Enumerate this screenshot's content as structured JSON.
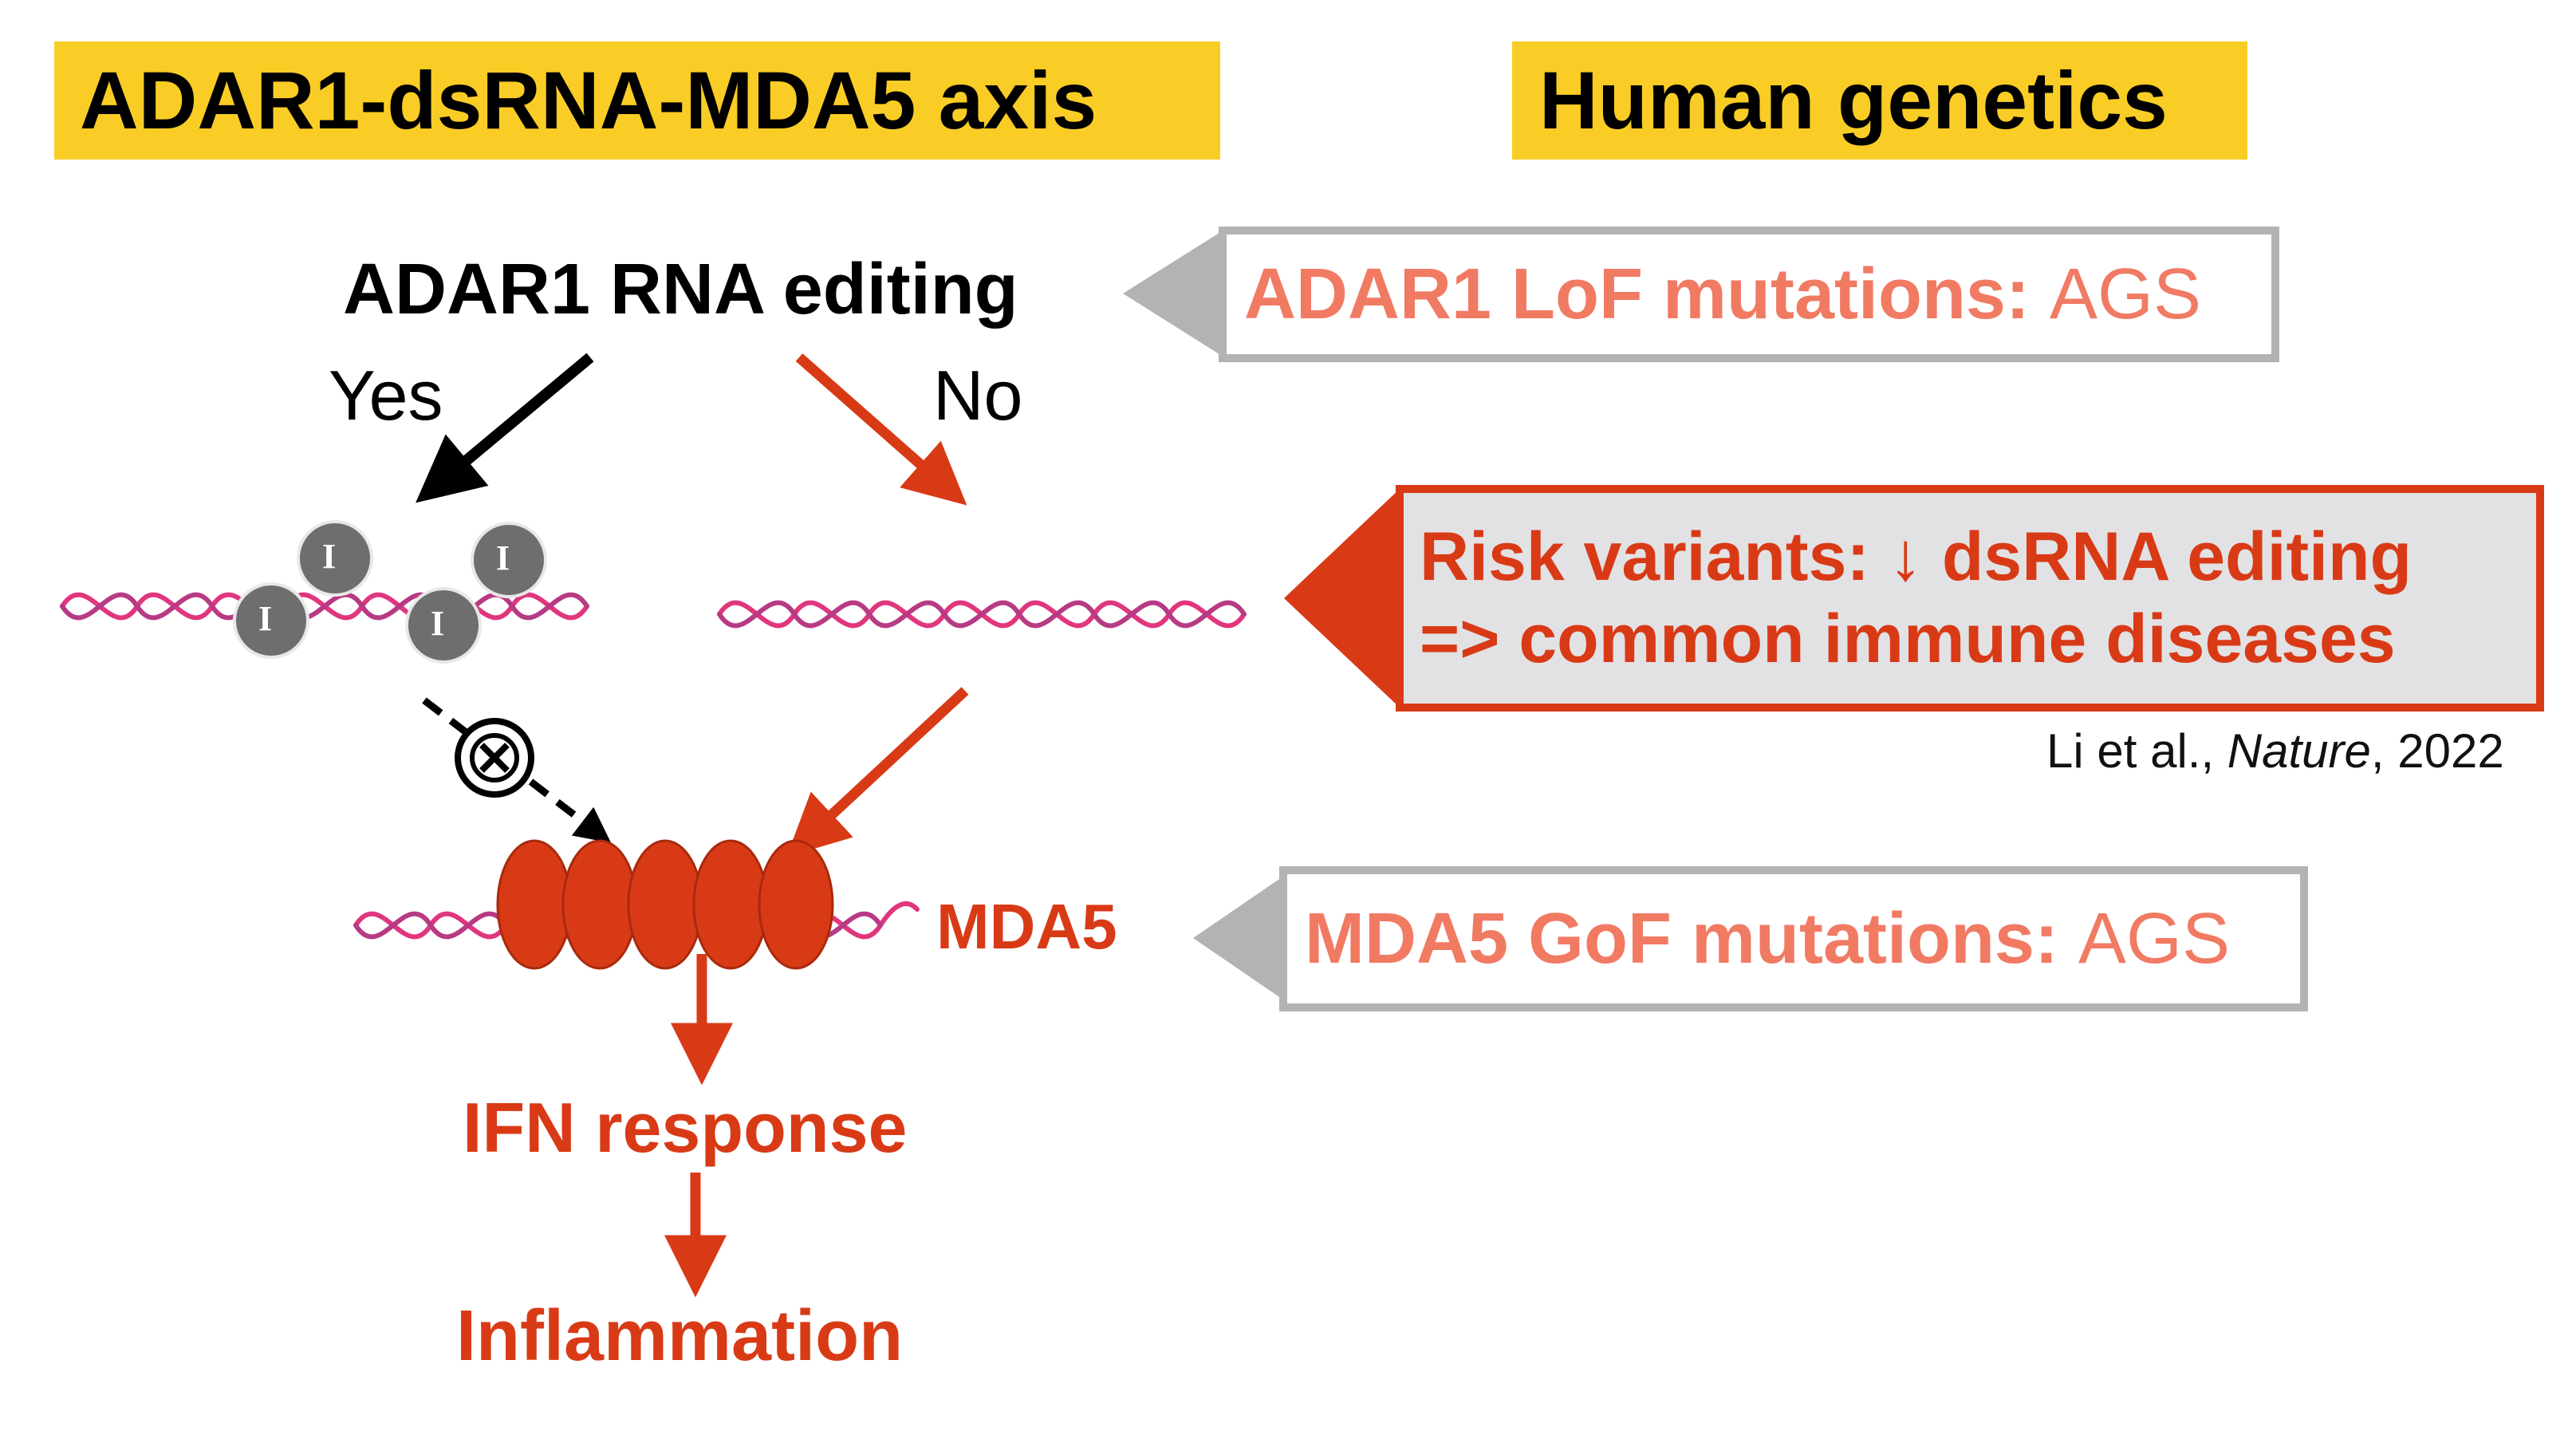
{
  "headers": {
    "left": "ADAR1-dsRNA-MDA5 axis",
    "right": "Human genetics"
  },
  "diagram": {
    "top_label": "ADAR1 RNA editing",
    "yes_label": "Yes",
    "no_label": "No",
    "inosine_label": "I",
    "mda5_label": "MDA5",
    "ifn_label": "IFN response",
    "inflammation_label": "Inflammation"
  },
  "genetics": {
    "box1": {
      "bold": "ADAR1 LoF mutations:",
      "plain": "AGS"
    },
    "box2": {
      "line1": "Risk variants: ↓ dsRNA editing",
      "line2": "=> common immune diseases"
    },
    "citation": {
      "authors": "Li et al., ",
      "journal": "Nature",
      "year": ", 2022"
    },
    "box3": {
      "bold": "MDA5 GoF mutations:",
      "plain": "AGS"
    }
  },
  "colors": {
    "header_bg": "#f9cd25",
    "accent_red": "#d93a16",
    "salmon": "#f17a63",
    "rna_pink": "#e0367e",
    "gray_border": "#b3b3b3",
    "inosine_gray": "#6e6e6e"
  }
}
